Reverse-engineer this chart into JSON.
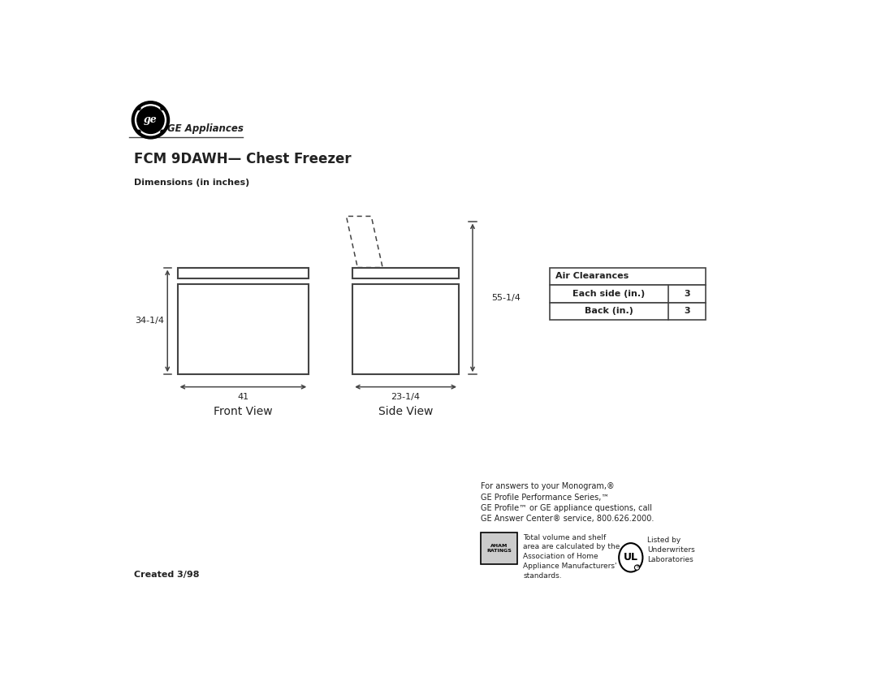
{
  "title": "FCM 9DAWH— Chest Freezer",
  "subtitle": "Dimensions (in inches)",
  "ge_appliances_text": "GE Appliances",
  "front_view_label": "Front View",
  "side_view_label": "Side View",
  "front_width_label": "41",
  "front_height_label": "34-1/4",
  "side_width_label": "23-1/4",
  "side_height_label": "55-1/4",
  "air_clearances_title": "Air Clearances",
  "air_clearances_rows": [
    [
      "Each side (in.)",
      "3"
    ],
    [
      "Back (in.)",
      "3"
    ]
  ],
  "footer_line1": "For answers to your Monogram,®",
  "footer_line2": "GE Profile Performance Series,™",
  "footer_line3": "GE Profile™ or GE appliance questions, call",
  "footer_line4": "GE Answer Center® service, 800.626.2000.",
  "created_text": "Created 3/98",
  "aham_text": "Total volume and shelf\narea are calculated by the\nAssociation of Home\nAppliance Manufacturers'\nstandards.",
  "ul_text": "Listed by\nUnderwriters\nLaboratories",
  "bg_color": "#ffffff",
  "line_color": "#444444",
  "text_color": "#222222"
}
